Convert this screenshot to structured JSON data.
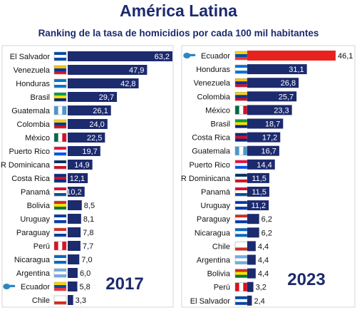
{
  "title": "América Latina",
  "subtitle": "Ranking de la tasa de homicidios por cada 100 mil habitantes",
  "colors": {
    "bar": "#1c2a6e",
    "highlight": "#e8231f",
    "pointer": "#2e86c1"
  },
  "chart_data": [
    {
      "type": "bar",
      "orientation": "horizontal",
      "year_label": "2017",
      "highlight": "Ecuador",
      "categories": [
        "El Salvador",
        "Venezuela",
        "Honduras",
        "Brasil",
        "Guatemala",
        "Colombia",
        "México",
        "Puerto Rico",
        "R Dominicana",
        "Costa Rica",
        "Panamá",
        "Bolivia",
        "Uruguay",
        "Paraguay",
        "Perú",
        "Nicaragua",
        "Argentina",
        "Ecuador",
        "Chile"
      ],
      "values": [
        63.2,
        47.9,
        42.8,
        29.7,
        26.1,
        24.0,
        22.5,
        19.7,
        14.9,
        12.1,
        10.2,
        8.5,
        8.1,
        7.8,
        7.7,
        7.0,
        6.0,
        5.8,
        3.3
      ],
      "value_labels": [
        "63,2",
        "47,9",
        "42,8",
        "29,7",
        "26,1",
        "24,0",
        "22,5",
        "19,7",
        "14,9",
        "12,1",
        "10,2",
        "8,5",
        "8,1",
        "7,8",
        "7,7",
        "7,0",
        "6,0",
        "5,8",
        "3,3"
      ]
    },
    {
      "type": "bar",
      "orientation": "horizontal",
      "year_label": "2023",
      "highlight": "Ecuador",
      "categories": [
        "Ecuador",
        "Honduras",
        "Venezuela",
        "Colombia",
        "México",
        "Brasil",
        "Costa Rica",
        "Guatemala",
        "Puerto Rico",
        "R Dominicana",
        "Panamá",
        "Uruguay",
        "Paraguay",
        "Nicaragua",
        "Chile",
        "Argentina",
        "Bolivia",
        "Perú",
        "El Salvador"
      ],
      "values": [
        46.1,
        31.1,
        26.8,
        25.7,
        23.3,
        18.7,
        17.2,
        16.7,
        14.4,
        11.5,
        11.5,
        11.2,
        6.2,
        6.2,
        4.4,
        4.4,
        4.4,
        3.2,
        2.4
      ],
      "value_labels": [
        "46,1",
        "31,1",
        "26,8",
        "25,7",
        "23,3",
        "18,7",
        "17,2",
        "16,7",
        "14,4",
        "11,5",
        "11,5",
        "11,2",
        "6,2",
        "6,2",
        "4,4",
        "4,4",
        "4,4",
        "3,2",
        "2,4"
      ]
    }
  ]
}
